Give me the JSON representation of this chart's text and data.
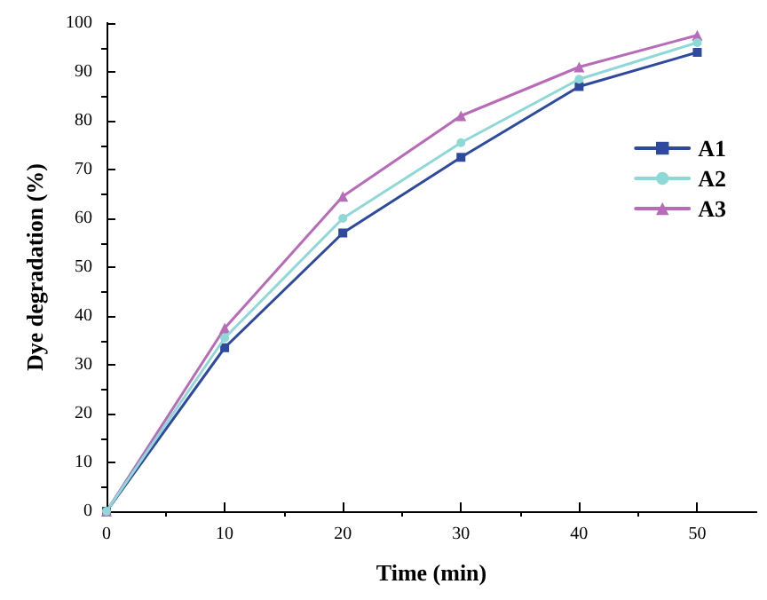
{
  "chart_data": {
    "type": "line",
    "xlabel": "Time (min)",
    "ylabel": "Dye degradation (%)",
    "x": [
      0,
      10,
      20,
      30,
      40,
      50
    ],
    "series": [
      {
        "name": "A1",
        "color": "#2e4a9e",
        "marker": "square",
        "values": [
          0,
          33.5,
          57,
          72.5,
          87,
          94
        ]
      },
      {
        "name": "A2",
        "color": "#8fd8d8",
        "marker": "circle",
        "values": [
          0,
          35.5,
          60,
          75.5,
          88.5,
          96
        ]
      },
      {
        "name": "A3",
        "color": "#b86bb8",
        "marker": "triangle",
        "values": [
          0,
          37.5,
          64.5,
          81,
          91,
          97.5
        ]
      }
    ],
    "xlim": [
      0,
      55
    ],
    "xticks": [
      0,
      10,
      20,
      30,
      40,
      50
    ],
    "ylim": [
      0,
      100
    ],
    "yticks": [
      0,
      10,
      20,
      30,
      40,
      50,
      60,
      70,
      80,
      90,
      100
    ],
    "grid": false,
    "legend": "top right",
    "line_style": "solid"
  }
}
